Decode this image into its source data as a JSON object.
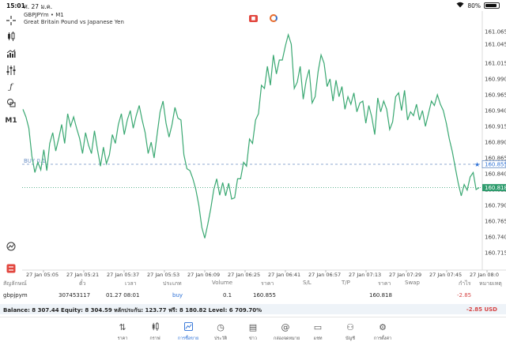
{
  "status_bar": {
    "time": "15:01",
    "date": "ศ. 27 ม.ค.",
    "battery": "80%"
  },
  "chart": {
    "symbol_timeframe": "GBPJPYm • M1",
    "description": "Great Britain Pound vs Japanese Yen",
    "timeframe_button": "M1",
    "buy_line_label": "BUY 0.1",
    "buy_price_tag": "160.855",
    "current_price_tag": "160.818",
    "colors": {
      "line": "#3aa872",
      "buy_line": "#6b8fc4",
      "price_line": "#2f9c6e",
      "price_tag": "#2f9c6e"
    }
  },
  "chart_data": {
    "type": "line",
    "title": "",
    "xlabel": "",
    "ylabel": "",
    "ylim": [
      160.7,
      161.075
    ],
    "y_ticks": [
      "161.065",
      "161.045",
      "161.015",
      "160.990",
      "160.965",
      "160.940",
      "160.915",
      "160.890",
      "160.865",
      "160.840",
      "160.815",
      "160.790",
      "160.765",
      "160.740",
      "160.715"
    ],
    "x_ticks": [
      "27 Jan 05:05",
      "27 Jan 05:21",
      "27 Jan 05:37",
      "27 Jan 05:53",
      "27 Jan 06:09",
      "27 Jan 06:25",
      "27 Jan 06:41",
      "27 Jan 06:57",
      "27 Jan 07:13",
      "27 Jan 07:29",
      "27 Jan 07:45",
      "27 Jan 08:0"
    ],
    "grid": false,
    "series": [
      {
        "values": [
          160.942,
          160.93,
          160.912,
          160.868,
          160.842,
          160.858,
          160.846,
          160.878,
          160.845,
          160.888,
          160.905,
          160.876,
          160.896,
          160.918,
          160.888,
          160.935,
          160.915,
          160.93,
          160.912,
          160.896,
          160.872,
          160.905,
          160.885,
          160.872,
          160.908,
          160.878,
          160.852,
          160.882,
          160.856,
          160.87,
          160.902,
          160.888,
          160.918,
          160.935,
          160.902,
          160.925,
          160.94,
          160.912,
          160.932,
          160.948,
          160.925,
          160.905,
          160.872,
          160.89,
          160.865,
          160.902,
          160.938,
          160.955,
          160.92,
          160.898,
          160.918,
          160.945,
          160.928,
          160.925,
          160.87,
          160.848,
          160.845,
          160.832,
          160.815,
          160.79,
          160.755,
          160.738,
          160.76,
          160.785,
          160.815,
          160.832,
          160.806,
          160.826,
          160.805,
          160.825,
          160.8,
          160.802,
          160.832,
          160.832,
          160.858,
          160.852,
          160.895,
          160.888,
          160.925,
          160.935,
          160.98,
          160.975,
          161.01,
          160.98,
          161.028,
          160.998,
          161.02,
          161.02,
          161.042,
          161.06,
          161.045,
          160.975,
          160.985,
          161.01,
          160.958,
          160.988,
          161.005,
          160.952,
          160.962,
          161.002,
          161.028,
          161.015,
          160.978,
          160.99,
          160.955,
          160.988,
          160.962,
          160.978,
          160.942,
          160.962,
          160.95,
          160.968,
          160.938,
          160.952,
          160.955,
          160.92,
          160.948,
          160.93,
          160.902,
          160.96,
          160.938,
          160.955,
          160.942,
          160.91,
          160.922,
          160.962,
          160.968,
          160.94,
          160.972,
          160.925,
          160.938,
          160.932,
          160.95,
          160.925,
          160.94,
          160.915,
          160.935,
          160.955,
          160.948,
          160.965,
          160.95,
          160.94,
          160.92,
          160.895,
          160.875,
          160.85,
          160.825,
          160.805,
          160.823,
          160.814,
          160.835,
          160.842,
          160.815,
          160.818
        ]
      }
    ]
  },
  "positions": {
    "headers": [
      "สัญลักษณ์",
      "ตั๋ว",
      "เวลา",
      "ประเภท",
      "Volume",
      "ราคา",
      "S/L",
      "T/P",
      "ราคา",
      "Swap",
      "กำไร",
      "หมายเหตุ"
    ],
    "rows": [
      {
        "symbol": "gbpjpym",
        "ticket": "307453117",
        "time": "01.27 08:01",
        "type": "buy",
        "volume": "0.1",
        "open_price": "160.855",
        "current_price": "160.818",
        "profit": "-2.85"
      }
    ]
  },
  "account": {
    "summary": "Balance: 8 307.44 Equity: 8 304.59 หลักประกัน: 123.77 ฟรี: 8 180.82 Level: 6 709.70%",
    "profit": "-2.85",
    "currency": "USD"
  },
  "tabs": [
    {
      "icon": "quotes-icon",
      "label": "ราคา"
    },
    {
      "icon": "chart-icon",
      "label": "กราฟ"
    },
    {
      "icon": "trade-icon",
      "label": "การซื้อขาย",
      "active": true
    },
    {
      "icon": "history-icon",
      "label": "ประวัติ"
    },
    {
      "icon": "news-icon",
      "label": "ข่าว"
    },
    {
      "icon": "mailbox-icon",
      "label": "กล่องจดหมาย"
    },
    {
      "icon": "chat-icon",
      "label": "แชท"
    },
    {
      "icon": "accounts-icon",
      "label": "บัญชี"
    },
    {
      "icon": "settings-icon",
      "label": "การตั้งค่า"
    }
  ]
}
